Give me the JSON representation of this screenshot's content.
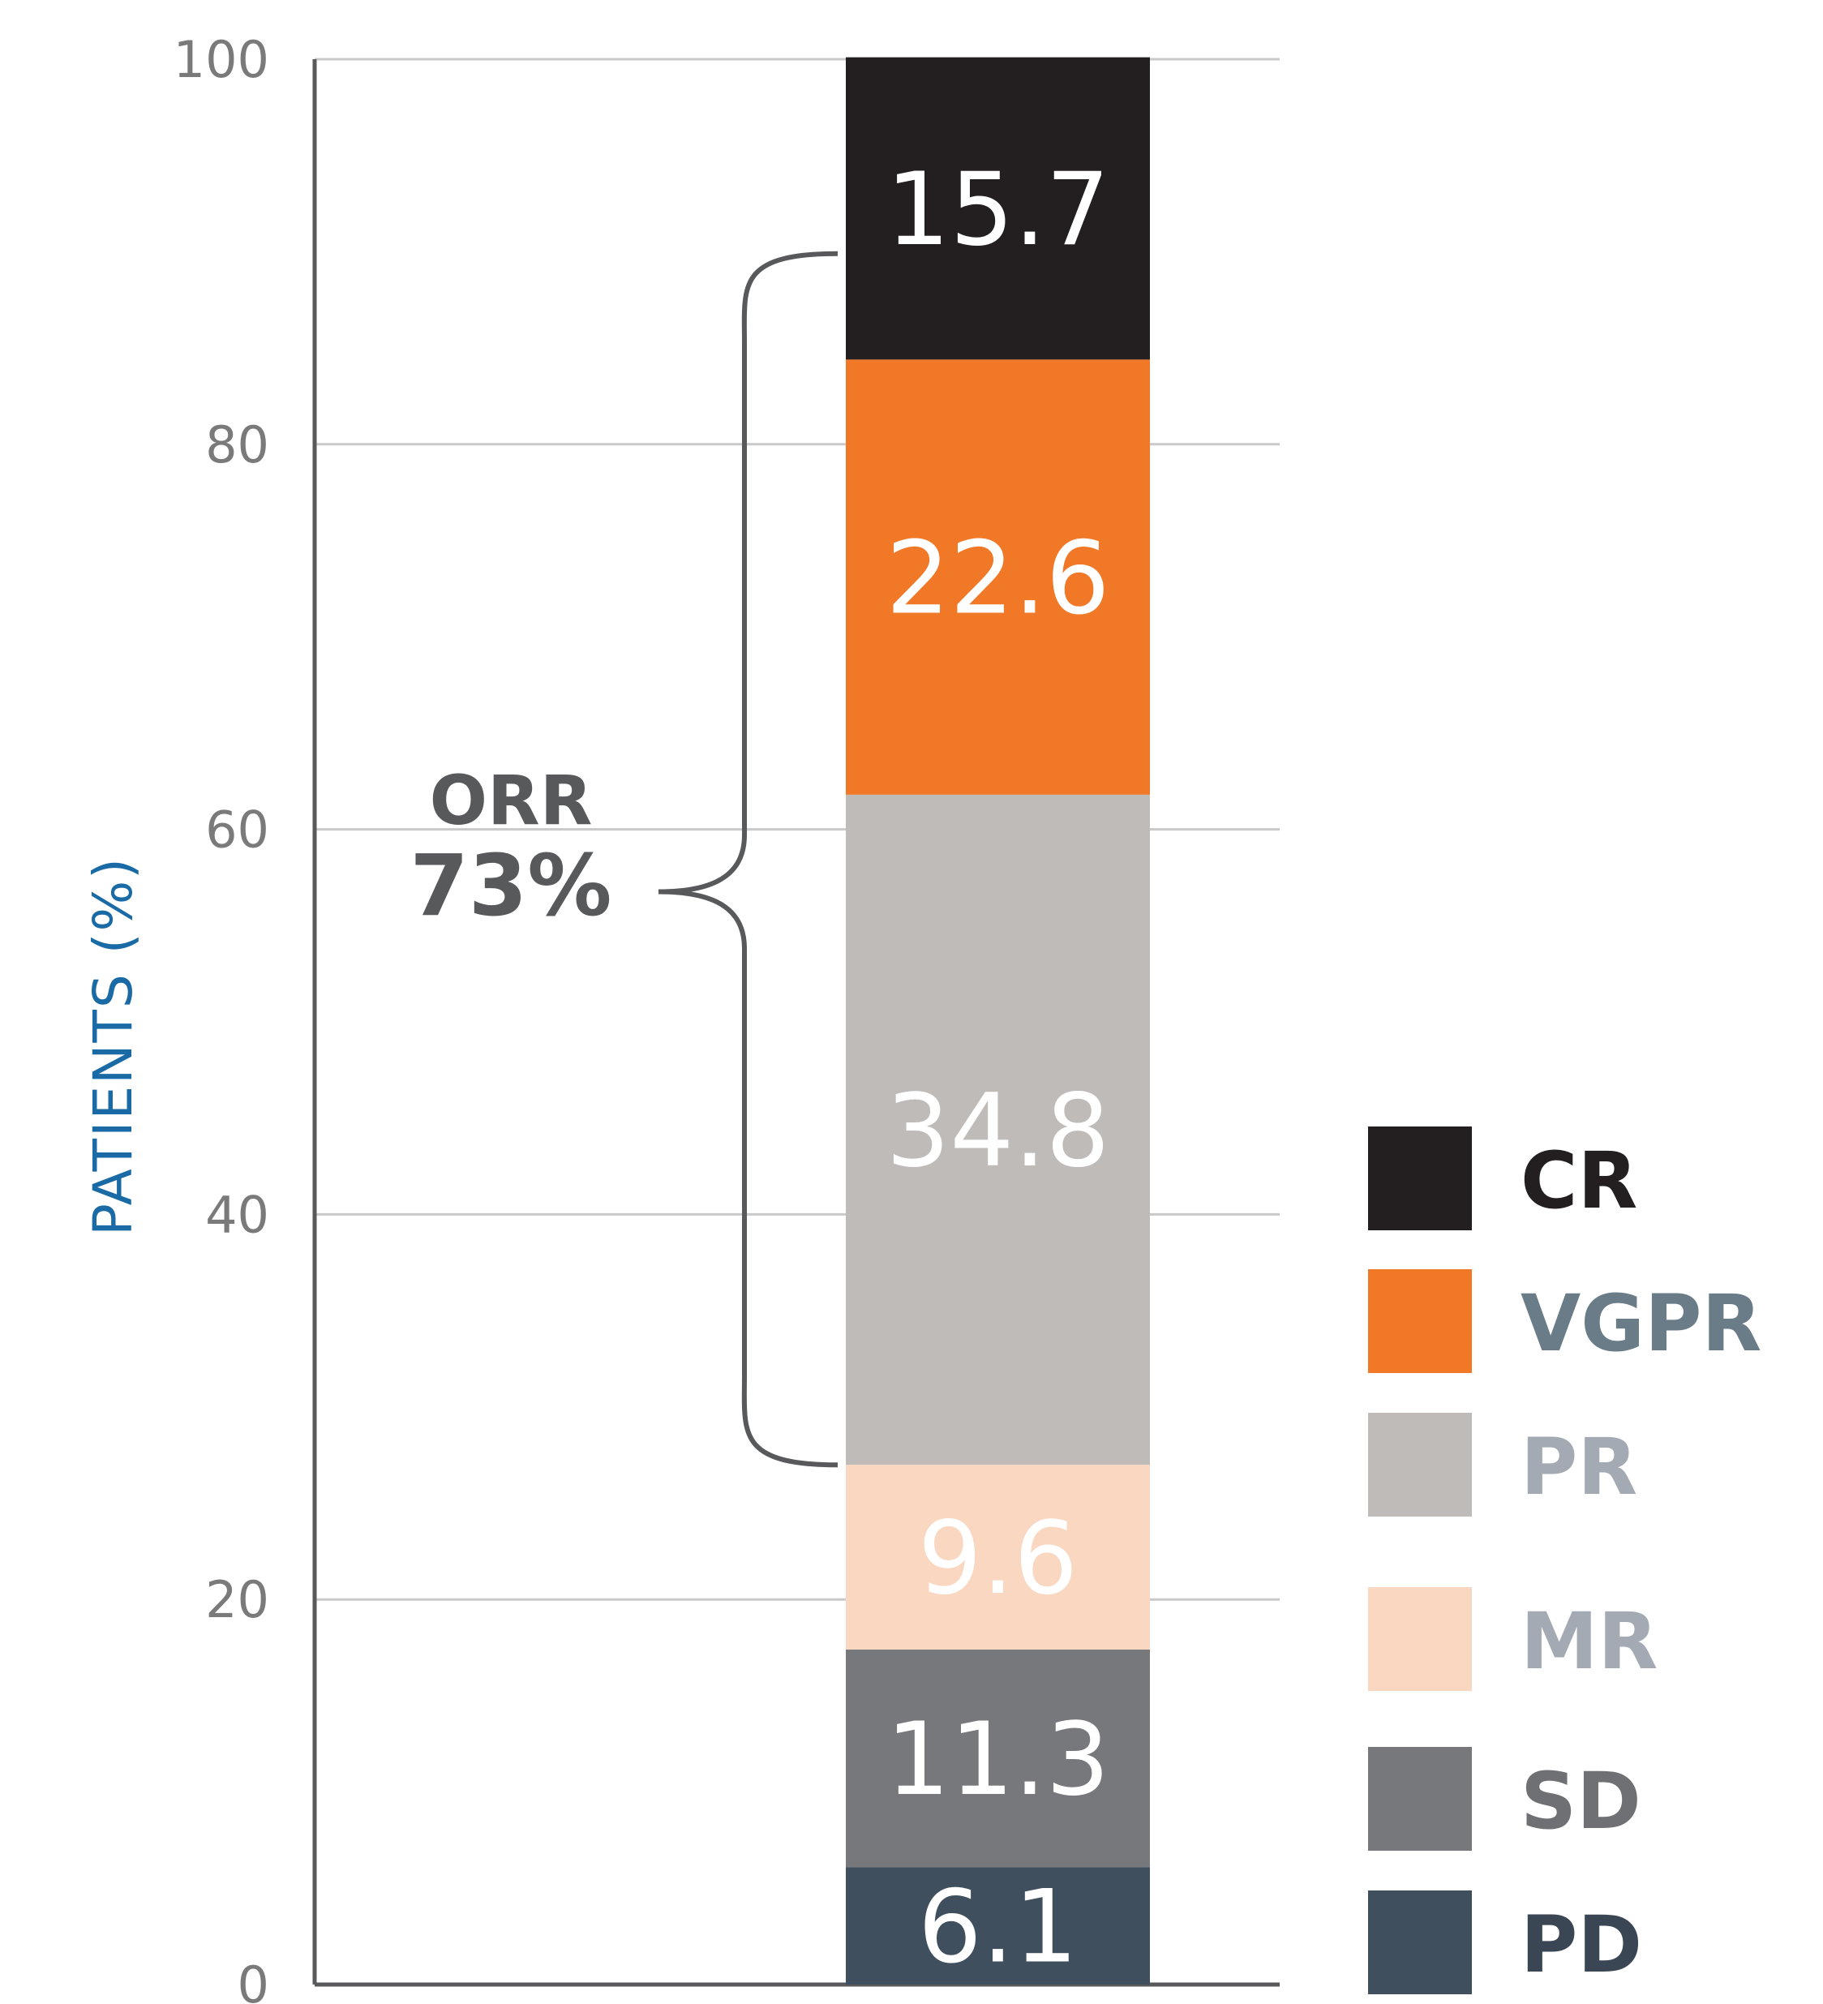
{
  "chart_data": {
    "type": "bar",
    "stacked": true,
    "ylabel": "PATIENTS (%)",
    "ylim": [
      0,
      100
    ],
    "yticks": [
      "0",
      "20",
      "40",
      "60",
      "80",
      "100"
    ],
    "grid": true,
    "legend_position": "bottom-right",
    "segments": [
      {
        "name": "PD",
        "value": 6.1,
        "label": "6.1",
        "color": "#3f4f5e",
        "label_color": "#ffffff",
        "legend_color": "#3a4654"
      },
      {
        "name": "SD",
        "value": 11.3,
        "label": "11.3",
        "color": "#77787c",
        "label_color": "#ffffff",
        "legend_color": "#6e7073"
      },
      {
        "name": "MR",
        "value": 9.6,
        "label": "9.6",
        "color": "#f9d7c0",
        "label_color": "#ffffff",
        "legend_color": "#a3aab3"
      },
      {
        "name": "PR",
        "value": 34.8,
        "label": "34.8",
        "color": "#bfbbb9",
        "label_color": "#ffffff",
        "legend_color": "#a3aab3"
      },
      {
        "name": "VGPR",
        "value": 22.6,
        "label": "22.6",
        "color": "#f07826",
        "label_color": "#ffffff",
        "legend_color": "#6a7c88"
      },
      {
        "name": "CR",
        "value": 15.7,
        "label": "15.7",
        "color": "#231f20",
        "label_color": "#ffffff",
        "legend_color": "#231f20"
      }
    ],
    "legend_order": [
      "CR",
      "VGPR",
      "PR",
      "MR",
      "SD",
      "PD"
    ],
    "annotation": {
      "line1": "ORR",
      "line2": "73%",
      "from": 26.99,
      "to": 89.9
    }
  },
  "colors": {
    "axis": "#58595b",
    "grid": "#c9c9c9",
    "tick_text": "#7a7a7a",
    "ylabel": "#1a6aa6",
    "annotation": "#58595b"
  }
}
